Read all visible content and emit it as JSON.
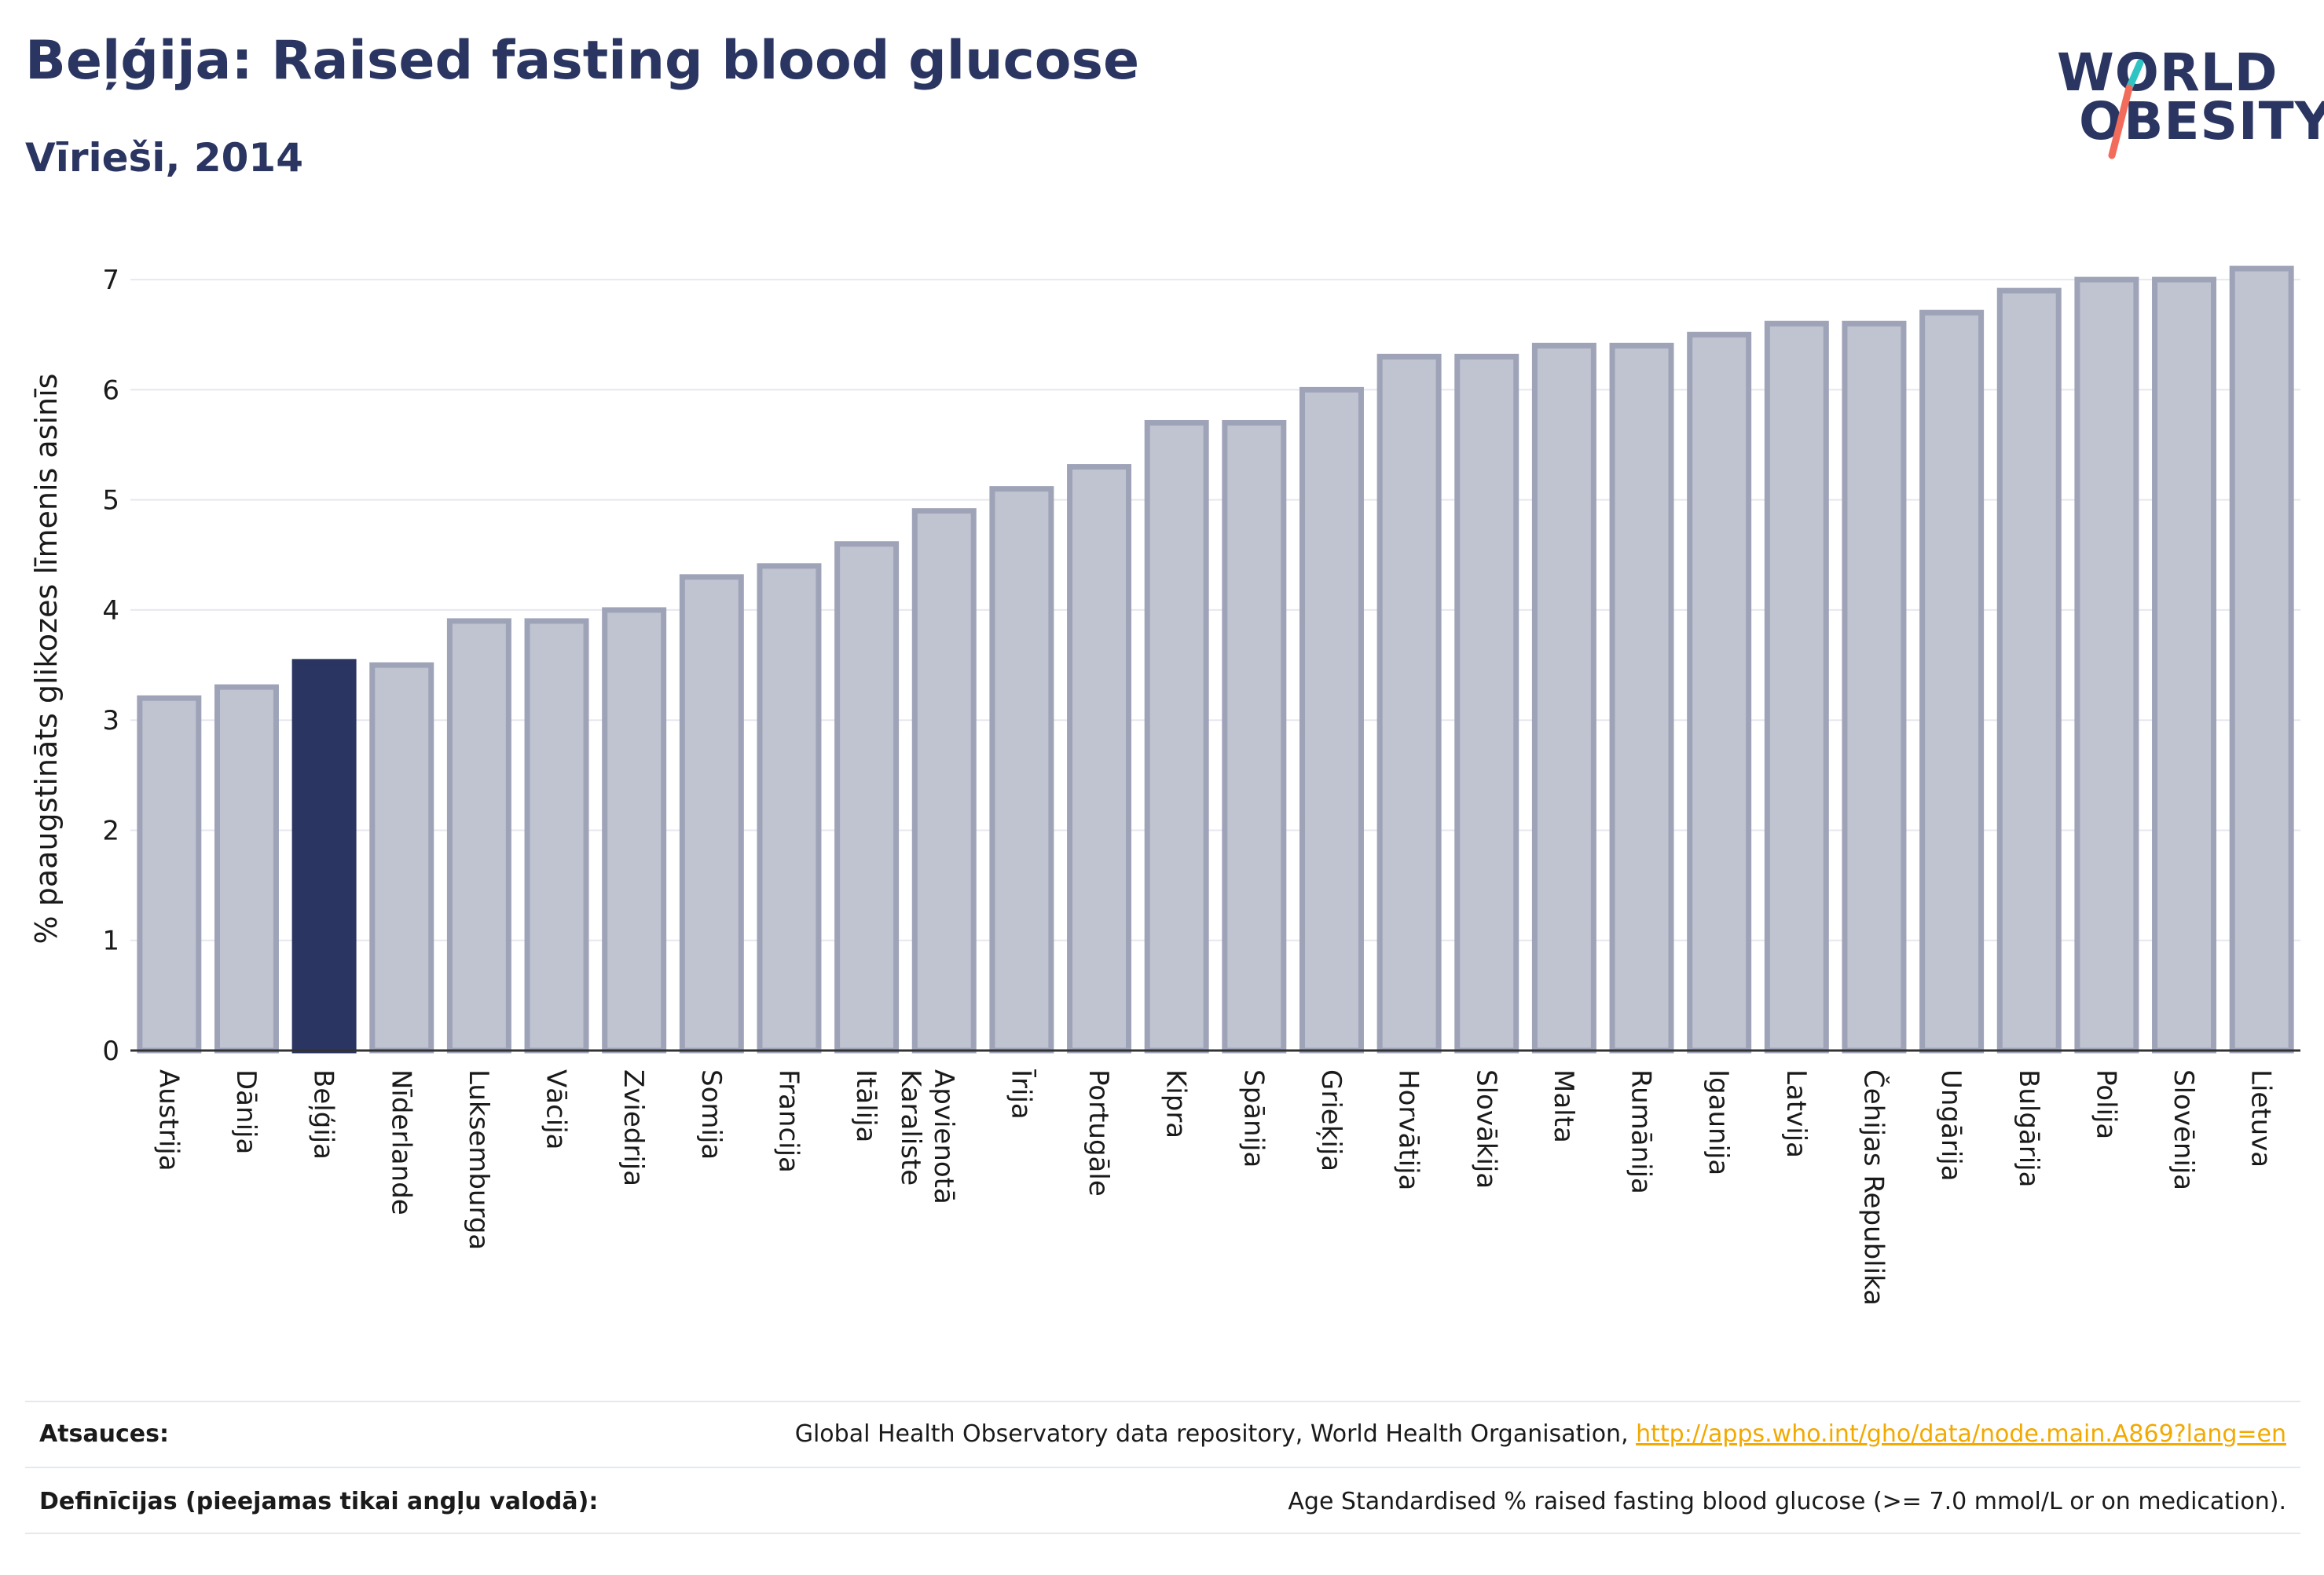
{
  "header": {
    "title": "Beļģija: Raised fasting blood glucose",
    "subtitle": "Vīrieši, 2014"
  },
  "logo": {
    "line1": "WORLD",
    "line2": "OBESITY"
  },
  "colors": {
    "highlight": "#2a3561",
    "bar": "#c0c3d0",
    "bar_stroke": "#9ea3b8",
    "axis": "#333333",
    "grid": "#e6e8ef",
    "logo_teal": "#2ec4c4",
    "logo_coral": "#f26b5b"
  },
  "chart_data": {
    "type": "bar",
    "ylabel": "% paaugstināts glikozes līmenis asinīs",
    "ylim": [
      0,
      7.4
    ],
    "yticks": [
      0,
      1,
      2,
      3,
      4,
      5,
      6,
      7
    ],
    "grid": true,
    "highlight": "Beļģija",
    "categories": [
      "Austrija",
      "Dānija",
      "Beļģija",
      "Nīderlande",
      "Luksemburga",
      "Vācija",
      "Zviedrija",
      "Somija",
      "Francija",
      "Itālija",
      "Apvienotā Karaliste",
      "Īrija",
      "Portugāle",
      "Kipra",
      "Spānija",
      "Grieķija",
      "Horvātija",
      "Slovākija",
      "Malta",
      "Rumānija",
      "Igaunija",
      "Latvija",
      "Čehijas Republika",
      "Ungārija",
      "Bulgārija",
      "Polija",
      "Slovēnija",
      "Lietuva"
    ],
    "values": [
      3.2,
      3.3,
      3.53,
      3.5,
      3.9,
      3.9,
      4.0,
      4.3,
      4.4,
      4.6,
      4.9,
      5.1,
      5.3,
      5.7,
      5.7,
      6.0,
      6.3,
      6.3,
      6.4,
      6.4,
      6.5,
      6.6,
      6.6,
      6.7,
      6.9,
      7.0,
      7.0,
      7.1
    ]
  },
  "footer": {
    "sources_label": "Atsauces:",
    "sources_text": "Global Health Observatory data repository, World Health Organisation, ",
    "sources_link": "http://apps.who.int/gho/data/node.main.A869?lang=en",
    "definitions_label": "Definīcijas (pieejamas tikai angļu valodā):",
    "definitions_text": "Age Standardised % raised fasting blood glucose (>= 7.0 mmol/L or on medication)."
  }
}
